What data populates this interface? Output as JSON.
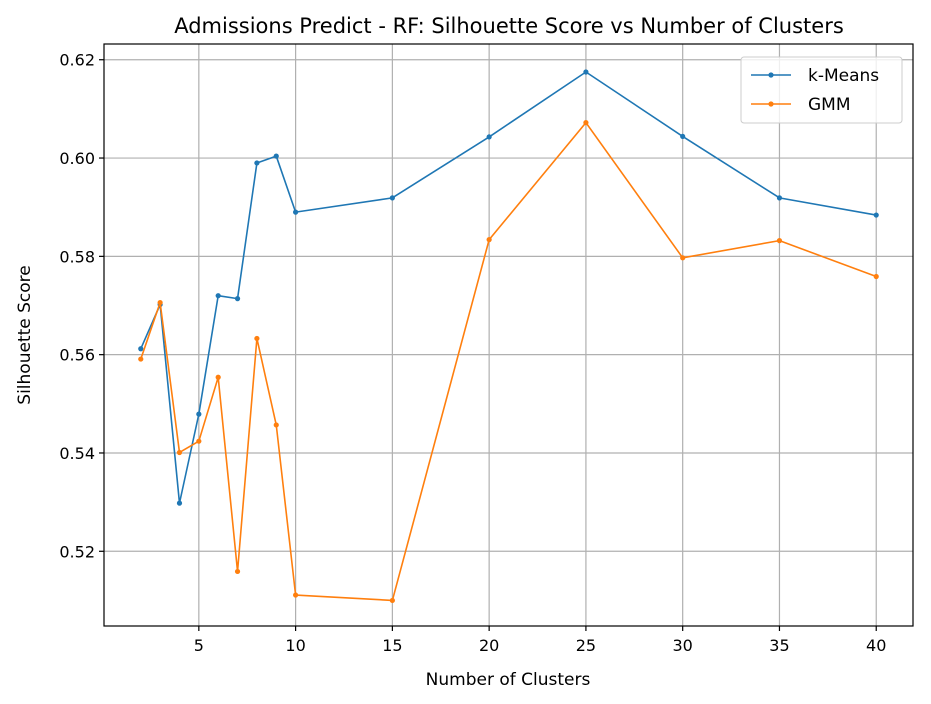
{
  "chart_data": {
    "type": "line",
    "title": "Admissions Predict - RF: Silhouette Score vs Number of Clusters",
    "xlabel": "Number of Clusters",
    "ylabel": "Silhouette Score",
    "xlim": [
      0.1,
      41.9
    ],
    "ylim": [
      0.5048,
      0.6232
    ],
    "xticks": [
      5,
      10,
      15,
      20,
      25,
      30,
      35,
      40
    ],
    "xtick_labels": [
      "5",
      "10",
      "15",
      "20",
      "25",
      "30",
      "35",
      "40"
    ],
    "yticks": [
      0.52,
      0.54,
      0.56,
      0.58,
      0.6,
      0.62
    ],
    "ytick_labels": [
      "0.52",
      "0.54",
      "0.56",
      "0.58",
      "0.60",
      "0.62"
    ],
    "grid": true,
    "legend_position": "top-right",
    "x": [
      2,
      3,
      4,
      5,
      6,
      7,
      8,
      9,
      10,
      15,
      20,
      25,
      30,
      35,
      40
    ],
    "series": [
      {
        "name": "k-Means",
        "color": "#1f77b4",
        "values": [
          0.5612,
          0.5702,
          0.5298,
          0.5479,
          0.572,
          0.5714,
          0.599,
          0.6004,
          0.589,
          0.5919,
          0.6043,
          0.6175,
          0.6044,
          0.5919,
          0.5884
        ]
      },
      {
        "name": "GMM",
        "color": "#ff7f0e",
        "values": [
          0.5591,
          0.5706,
          0.5401,
          0.5424,
          0.5554,
          0.5159,
          0.5633,
          0.5457,
          0.5111,
          0.51,
          0.5834,
          0.6072,
          0.5797,
          0.5832,
          0.5759
        ]
      }
    ]
  }
}
